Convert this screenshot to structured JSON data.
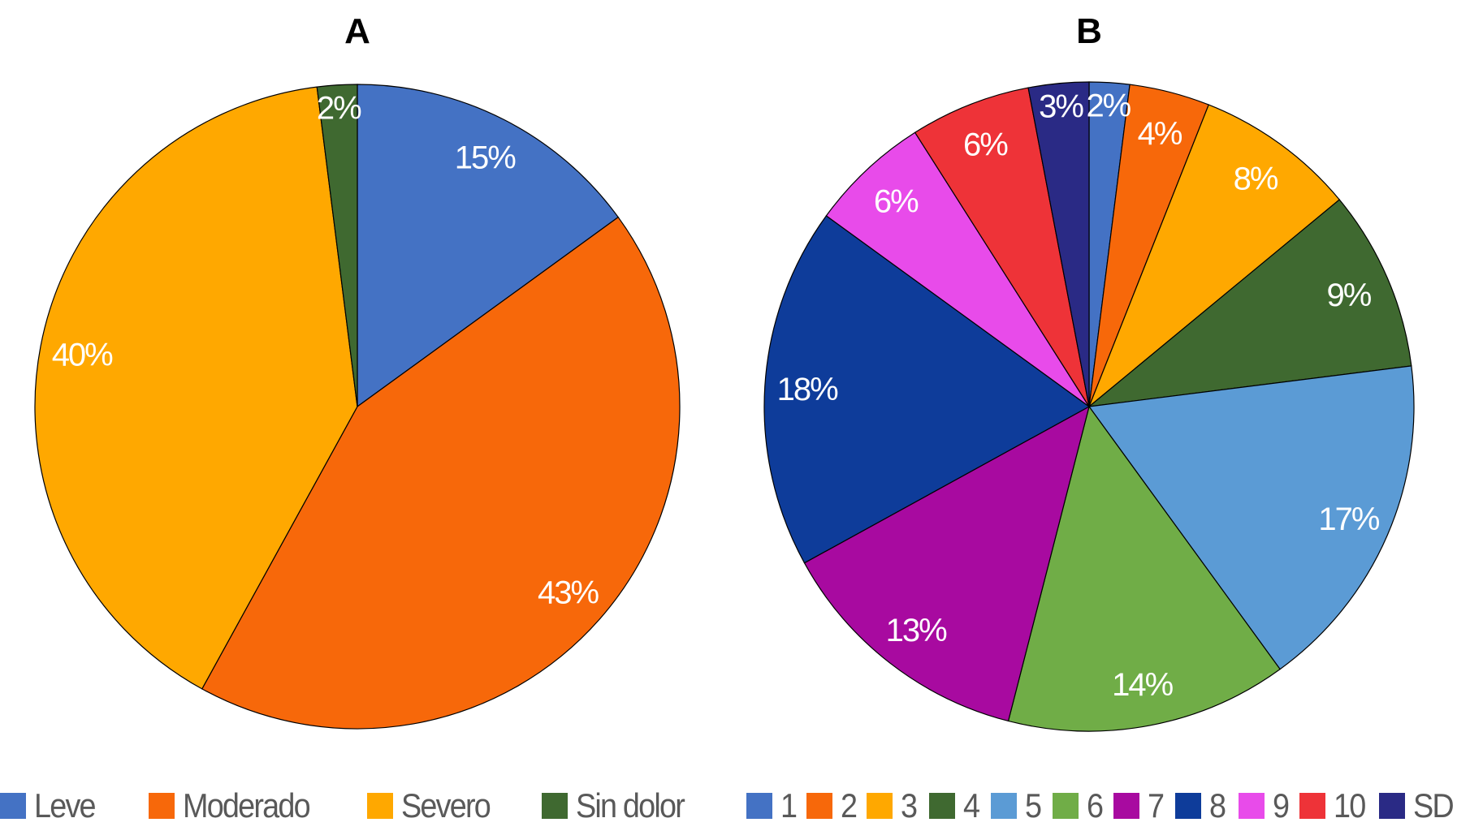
{
  "chart_data": [
    {
      "type": "pie",
      "title": "A",
      "categories": [
        "Leve",
        "Moderado",
        "Severo",
        "Sin dolor"
      ],
      "values": [
        15,
        43,
        40,
        2
      ],
      "labels": [
        "15%",
        "43%",
        "40%",
        "2%"
      ],
      "colors": [
        "#4472C4",
        "#F7680A",
        "#FFA800",
        "#3F6930"
      ],
      "legend": "bottom"
    },
    {
      "type": "pie",
      "title": "B",
      "categories": [
        "1",
        "2",
        "3",
        "4",
        "5",
        "6",
        "7",
        "8",
        "9",
        "10",
        "SD"
      ],
      "values": [
        2,
        4,
        8,
        9,
        17,
        14,
        13,
        18,
        6,
        6,
        3
      ],
      "labels": [
        "2%",
        "4%",
        "8%",
        "9%",
        "17%",
        "14%",
        "13%",
        "18%",
        "6%",
        "6%",
        "3%"
      ],
      "colors": [
        "#4472C4",
        "#F7680A",
        "#FFA800",
        "#3F6930",
        "#5B9BD5",
        "#70AD47",
        "#A80AA0",
        "#0E3C9A",
        "#E84BEA",
        "#EE3338",
        "#2A2A85"
      ],
      "legend": "bottom"
    }
  ]
}
